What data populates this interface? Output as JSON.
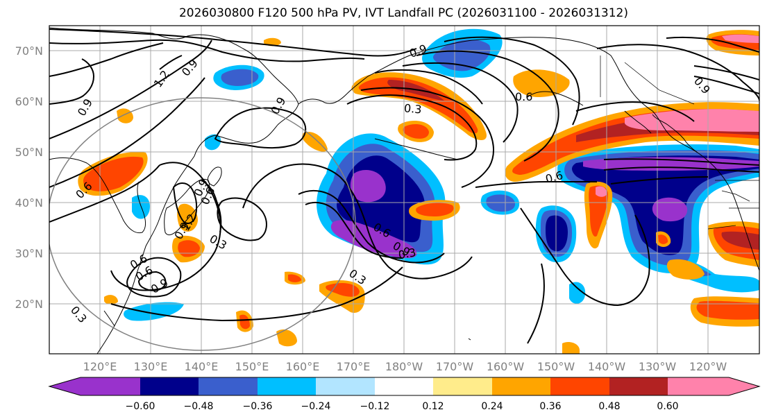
{
  "title": "2026030800 F120 500 hPa PV, IVT Landfall PC (2026031100 - 2026031312)",
  "lat_ticks": [
    "70°N",
    "60°N",
    "50°N",
    "40°N",
    "30°N",
    "20°N"
  ],
  "lon_ticks": [
    "120°E",
    "130°E",
    "140°E",
    "150°E",
    "160°E",
    "170°E",
    "180°W",
    "170°W",
    "160°W",
    "150°W",
    "140°W",
    "130°W",
    "120°W"
  ],
  "colorbar": {
    "labels": [
      "−0.60",
      "−0.48",
      "−0.36",
      "−0.24",
      "−0.12",
      "0.12",
      "0.24",
      "0.36",
      "0.48",
      "0.60"
    ],
    "colors": [
      "#9932cc",
      "#00008b",
      "#3a5fcd",
      "#00bfff",
      "#b2e5ff",
      "#ffffff",
      "#ffec8b",
      "#ffa500",
      "#ff4500",
      "#b22222",
      "#ff82ab"
    ]
  },
  "contour_labels": [
    "0.9",
    "1.2",
    "0.9",
    "0.9",
    "0.9",
    "0.6",
    "0.3",
    "0.6",
    "0.9",
    "0.6",
    "0.9",
    "0.6",
    "0.3",
    "0.6",
    "0.9",
    "1.2",
    "0.3",
    "0.6",
    "0.9",
    "0.3",
    "0.3",
    "0.6",
    "0.9"
  ]
}
